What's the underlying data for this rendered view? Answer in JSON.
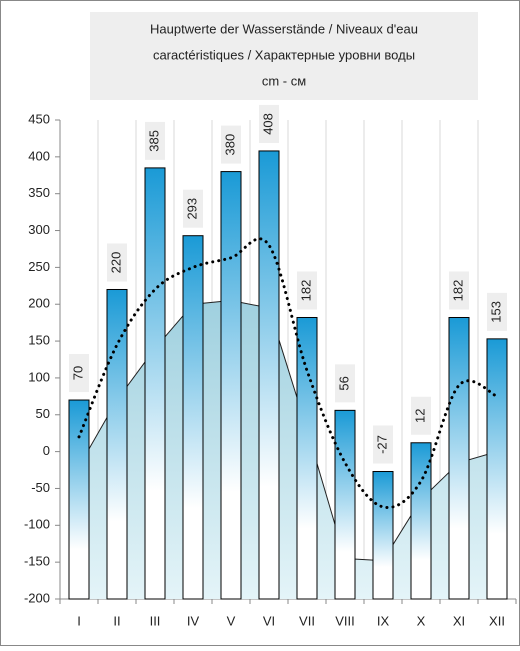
{
  "chart_data": {
    "type": "bar",
    "title": [
      "Hauptwerte der Wasserstände / Niveaux d'eau",
      "caractéristiques / Характерные уровни воды",
      "cm - см"
    ],
    "categories": [
      "I",
      "II",
      "III",
      "IV",
      "V",
      "VI",
      "VII",
      "VIII",
      "IX",
      "X",
      "XI",
      "XII"
    ],
    "series": [
      {
        "type": "area",
        "color": "#bfe3ee",
        "values": [
          -20,
          70,
          140,
          200,
          205,
          195,
          30,
          -145,
          -148,
          -65,
          -15,
          0
        ]
      },
      {
        "type": "bar",
        "color": "#1a9ad6",
        "values": [
          70,
          220,
          385,
          293,
          380,
          408,
          182,
          56,
          -27,
          12,
          182,
          153
        ]
      },
      {
        "type": "line",
        "color": "#000000",
        "values": [
          20,
          145,
          220,
          250,
          263,
          280,
          110,
          -15,
          -75,
          -40,
          90,
          75
        ]
      }
    ],
    "ylim": [
      -200,
      450
    ],
    "yticks": [
      -200,
      -150,
      -100,
      -50,
      0,
      50,
      100,
      150,
      200,
      250,
      300,
      350,
      400,
      450
    ]
  }
}
